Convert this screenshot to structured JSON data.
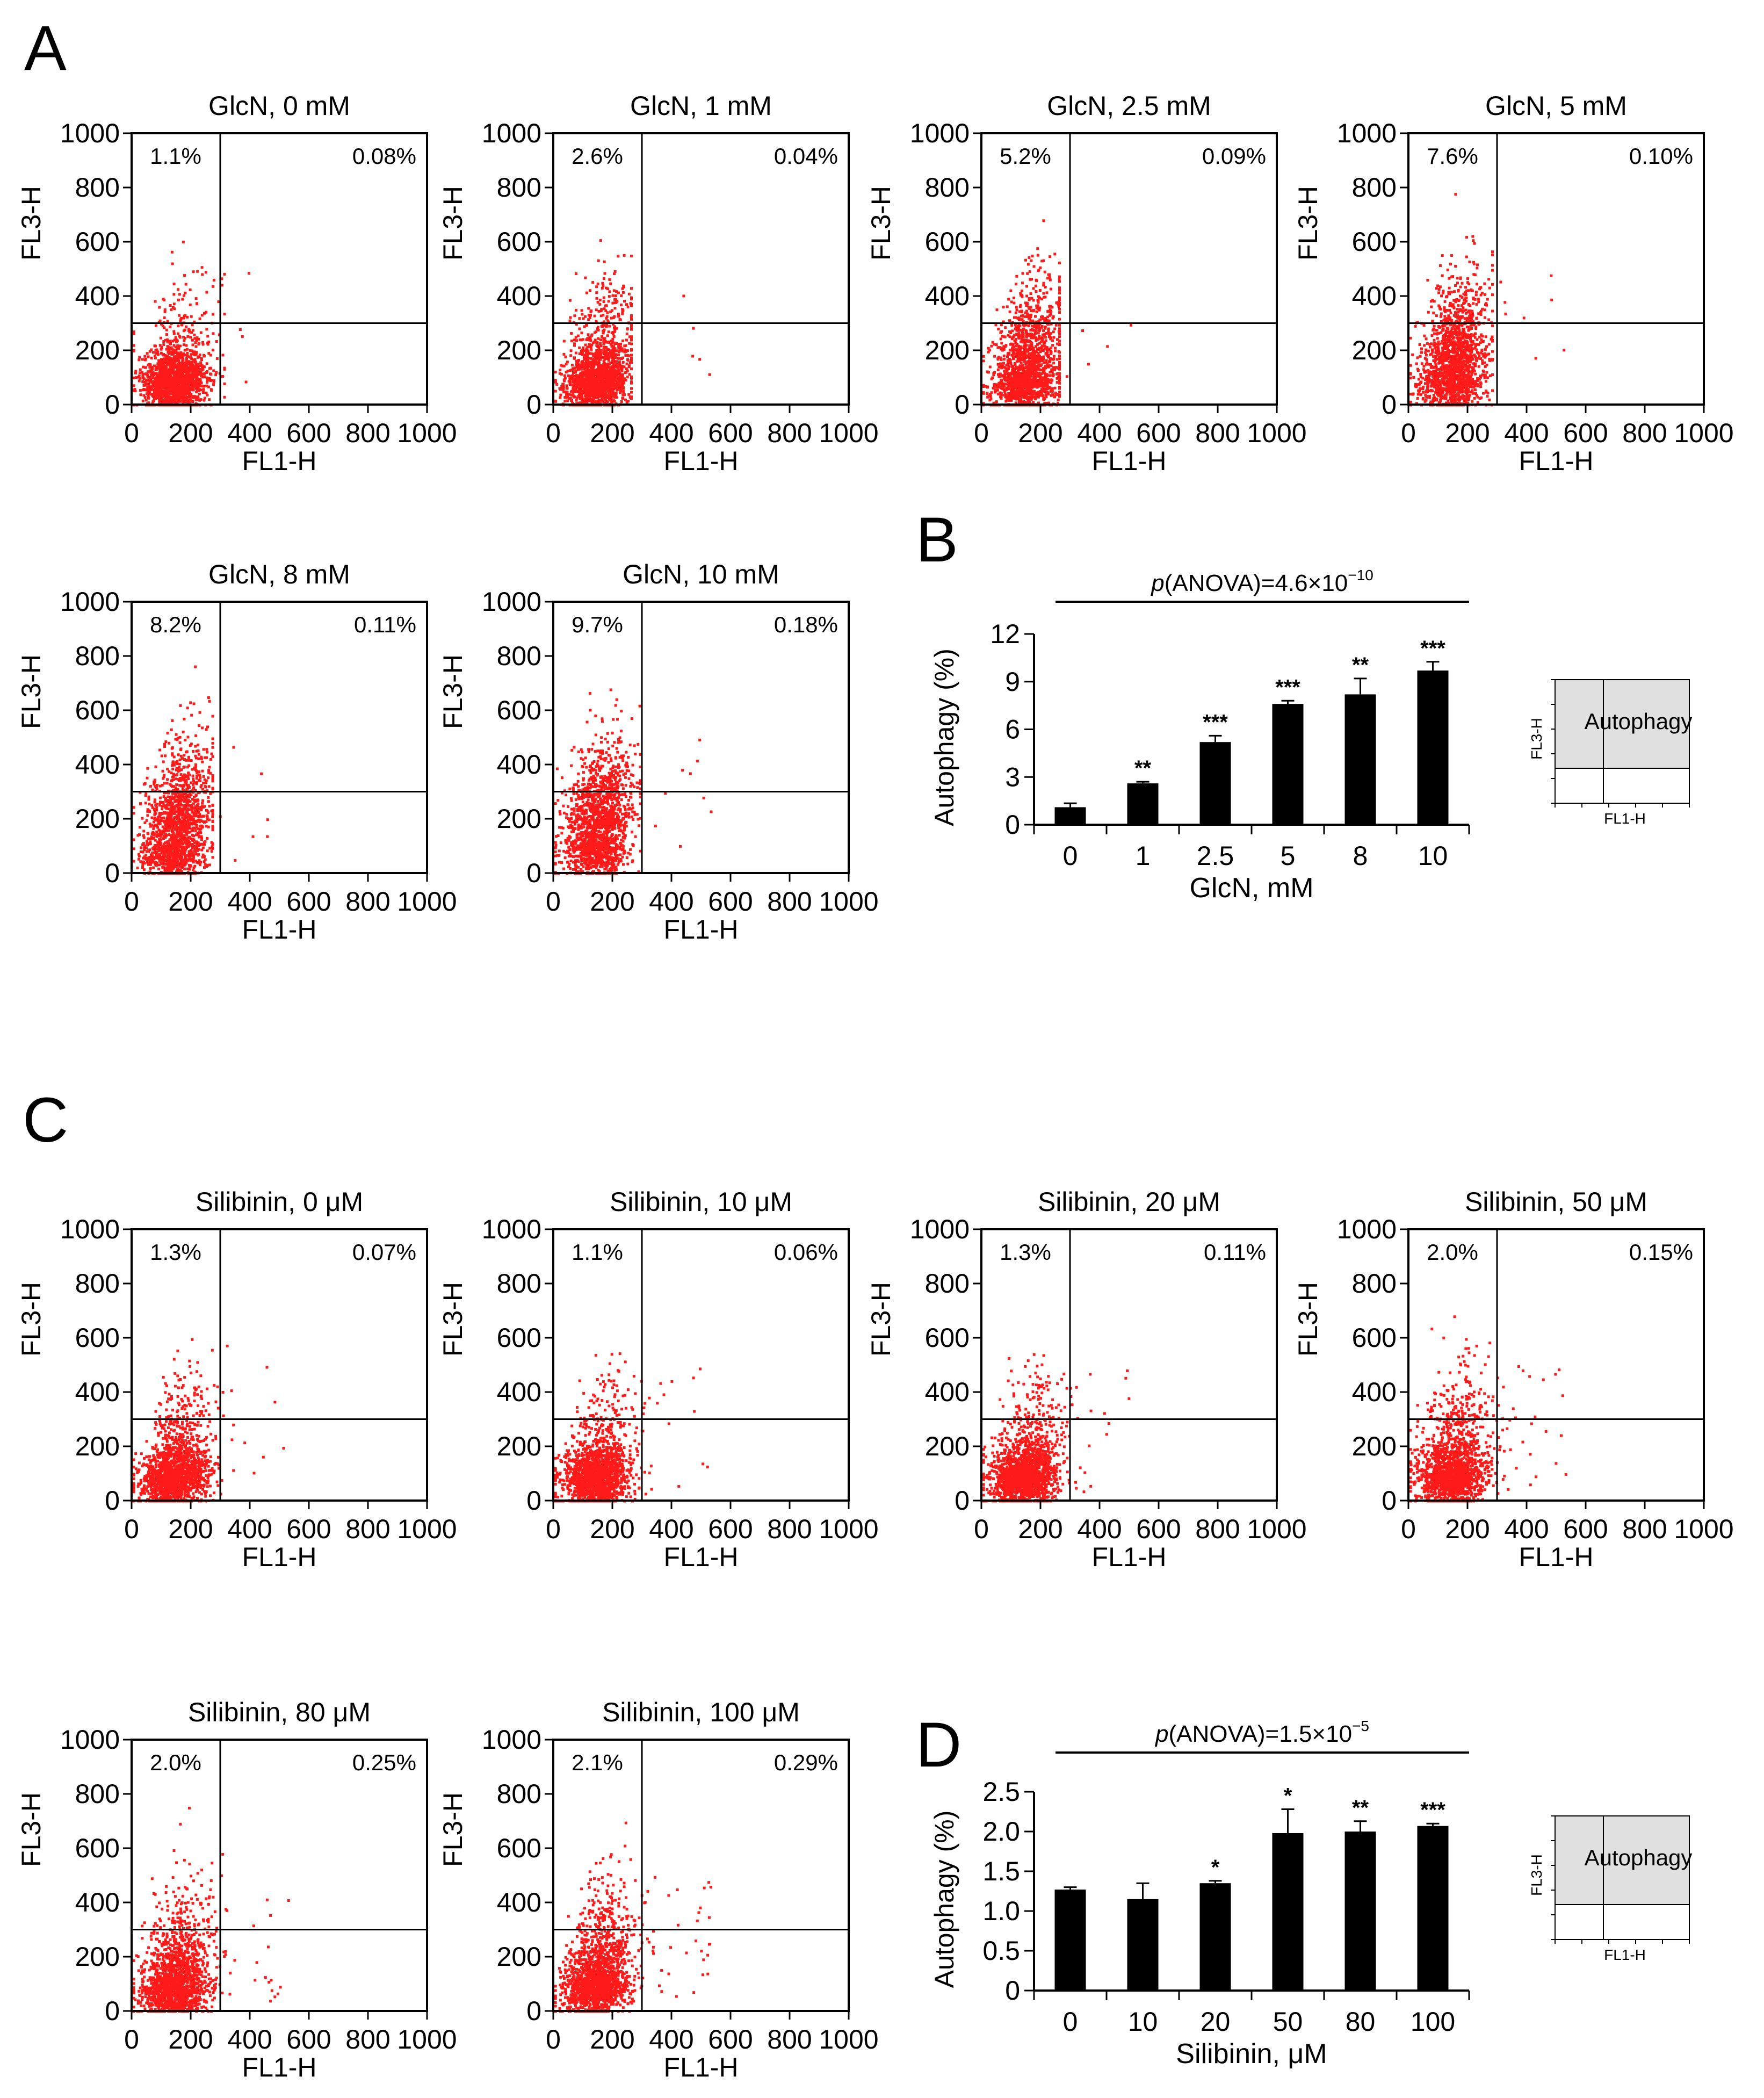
{
  "colors": {
    "dot": "#ff1a1a",
    "axis": "#000000",
    "bar": "#000000",
    "inset_fill": "#e0e0e0"
  },
  "panel_labels": [
    "A",
    "B",
    "C",
    "D"
  ],
  "scatter_axes": {
    "xlabel": "FL1-H",
    "ylabel": "FL3-H",
    "ticks": [
      "0",
      "200",
      "400",
      "600",
      "800",
      "1000"
    ],
    "x_ticks": [
      "0",
      "200",
      "400",
      "600",
      "800",
      "1000"
    ],
    "y_ticks": [
      "0",
      "200",
      "400",
      "600",
      "800",
      "1000"
    ],
    "xlim": [
      0,
      1000
    ],
    "ylim": [
      0,
      1000
    ],
    "gate_x": 300,
    "gate_y": 300
  },
  "chart_data": [
    {
      "type": "scatter",
      "title": "GlcN, 0 mM",
      "upper_left": "1.1%",
      "upper_right": "0.08%",
      "spread": 0.12,
      "outliers": 12,
      "xmax": 310
    },
    {
      "type": "scatter",
      "title": "GlcN, 1 mM",
      "upper_left": "2.6%",
      "upper_right": "0.04%",
      "spread": 0.2,
      "outliers": 6,
      "xmax": 260
    },
    {
      "type": "scatter",
      "title": "GlcN, 2.5 mM",
      "upper_left": "5.2%",
      "upper_right": "0.09%",
      "spread": 0.32,
      "outliers": 8,
      "xmax": 260
    },
    {
      "type": "scatter",
      "title": "GlcN, 5 mM",
      "upper_left": "7.6%",
      "upper_right": "0.10%",
      "spread": 0.42,
      "outliers": 10,
      "xmax": 280
    },
    {
      "type": "scatter",
      "title": "GlcN, 8 mM",
      "upper_left": "8.2%",
      "upper_right": "0.11%",
      "spread": 0.45,
      "outliers": 8,
      "xmax": 270
    },
    {
      "type": "scatter",
      "title": "GlcN, 10 mM",
      "upper_left": "9.7%",
      "upper_right": "0.18%",
      "spread": 0.5,
      "outliers": 12,
      "xmax": 290
    },
    {
      "type": "bar",
      "categories": [
        "0",
        "1",
        "2.5",
        "5",
        "8",
        "10"
      ],
      "values": [
        1.1,
        2.6,
        5.2,
        7.6,
        8.2,
        9.7
      ],
      "errors": [
        0.25,
        0.1,
        0.4,
        0.2,
        1.0,
        0.55
      ],
      "significance": [
        "",
        "**",
        "***",
        "***",
        "**",
        "***"
      ],
      "xlabel": "GlcN, mM",
      "ylabel": "Autophagy (%)",
      "ylim": [
        0,
        12
      ],
      "yticks": [
        "0",
        "3",
        "6",
        "9",
        "12"
      ],
      "pvalue_prefix": "p",
      "pvalue_text": "(ANOVA)=4.6×10",
      "pvalue_exponent": "−10"
    },
    {
      "type": "scatter",
      "title": "Silibinin, 0 μM",
      "upper_left": "1.3%",
      "upper_right": "0.07%",
      "spread": 0.15,
      "outliers": 22,
      "xmax": 330
    },
    {
      "type": "scatter",
      "title": "Silibinin, 10 μM",
      "upper_left": "1.1%",
      "upper_right": "0.06%",
      "spread": 0.14,
      "outliers": 26,
      "xmax": 340
    },
    {
      "type": "scatter",
      "title": "Silibinin, 20 μM",
      "upper_left": "1.3%",
      "upper_right": "0.11%",
      "spread": 0.16,
      "outliers": 30,
      "xmax": 350
    },
    {
      "type": "scatter",
      "title": "Silibinin, 50 μM",
      "upper_left": "2.0%",
      "upper_right": "0.15%",
      "spread": 0.22,
      "outliers": 40,
      "xmax": 380
    },
    {
      "type": "scatter",
      "title": "Silibinin, 80 μM",
      "upper_left": "2.0%",
      "upper_right": "0.25%",
      "spread": 0.22,
      "outliers": 45,
      "xmax": 360
    },
    {
      "type": "scatter",
      "title": "Silibinin, 100 μM",
      "upper_left": "2.1%",
      "upper_right": "0.29%",
      "spread": 0.24,
      "outliers": 50,
      "xmax": 380
    },
    {
      "type": "bar",
      "categories": [
        "0",
        "10",
        "20",
        "50",
        "80",
        "100"
      ],
      "values": [
        1.27,
        1.15,
        1.35,
        1.98,
        2.0,
        2.07
      ],
      "errors": [
        0.03,
        0.2,
        0.03,
        0.3,
        0.13,
        0.03
      ],
      "significance": [
        "",
        "",
        "*",
        "*",
        "**",
        "***"
      ],
      "xlabel": "Silibinin, μM",
      "ylabel": "Autophagy (%)",
      "ylim": [
        0,
        2.5
      ],
      "yticks": [
        "0",
        "0.5",
        "1.0",
        "1.5",
        "2.0",
        "2.5"
      ],
      "pvalue_prefix": "p",
      "pvalue_text": "(ANOVA)=1.5×10",
      "pvalue_exponent": "−5"
    }
  ],
  "inset": {
    "label": "Autophagy",
    "xlabel": "FL1-H",
    "ylabel": "FL3-H"
  }
}
